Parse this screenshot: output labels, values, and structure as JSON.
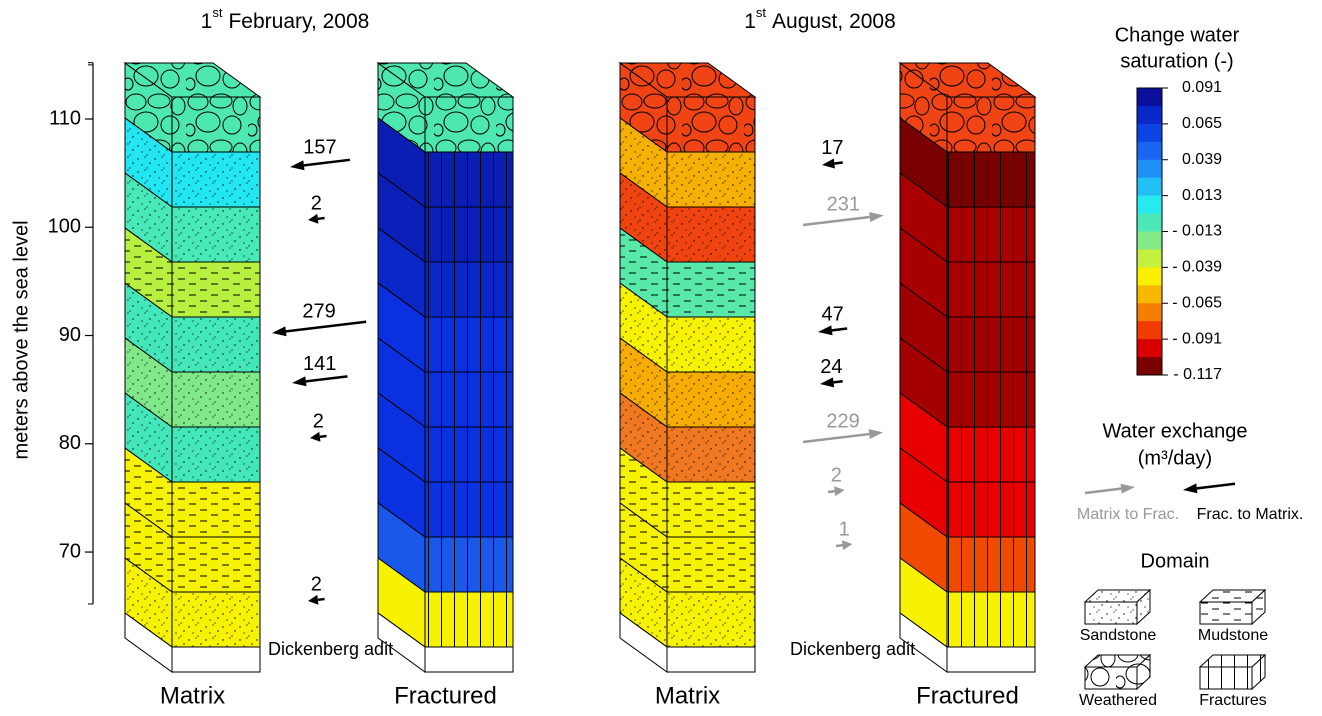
{
  "y_axis": {
    "label": "meters above the sea level",
    "ylim": [
      65.2,
      115.2
    ],
    "ticks": [
      110,
      100,
      90,
      80,
      70
    ]
  },
  "panels": [
    {
      "title": {
        "day": "1",
        "sup": "st",
        "rest": "February, 2008"
      },
      "adit_label": "Dickenberg adit",
      "columns": [
        {
          "label": "Matrix",
          "layers": [
            {
              "domain": 2,
              "color": "#4de8b0"
            },
            {
              "domain": 0,
              "color": "#22e6f2"
            },
            {
              "domain": 0,
              "color": "#48e8b8"
            },
            {
              "domain": 1,
              "color": "#b8f040"
            },
            {
              "domain": 0,
              "color": "#44e8b8"
            },
            {
              "domain": 0,
              "color": "#80e888"
            },
            {
              "domain": 0,
              "color": "#44e8b8"
            },
            {
              "domain": 1,
              "color": "#f6f200"
            },
            {
              "domain": 1,
              "color": "#f6f200"
            },
            {
              "domain": 0,
              "color": "#f6f200"
            },
            {
              "domain": null,
              "color": "#ffffff"
            }
          ]
        },
        {
          "label": "Fractured",
          "layers": [
            {
              "domain": 2,
              "color": "#4de8b0"
            },
            {
              "domain": 3,
              "color": "#0a1eb4"
            },
            {
              "domain": 3,
              "color": "#0a1eb8"
            },
            {
              "domain": 3,
              "color": "#0a28c8"
            },
            {
              "domain": 3,
              "color": "#0a30e0"
            },
            {
              "domain": 3,
              "color": "#0a30e0"
            },
            {
              "domain": 3,
              "color": "#0a30e0"
            },
            {
              "domain": 3,
              "color": "#0a32e0"
            },
            {
              "domain": 3,
              "color": "#1a58ea"
            },
            {
              "domain": 3,
              "color": "#f6f200"
            },
            {
              "domain": null,
              "color": "#ffffff"
            }
          ]
        }
      ],
      "arrows": [
        {
          "value": 157,
          "kind": 1
        },
        {
          "value": 2,
          "kind": 1
        },
        {
          "value": 279,
          "kind": 1
        },
        {
          "value": 141,
          "kind": 1
        },
        {
          "value": 2,
          "kind": 1
        },
        {
          "value": 2,
          "kind": 1
        }
      ]
    },
    {
      "title": {
        "day": "1",
        "sup": "st",
        "rest": "August, 2008"
      },
      "adit_label": "Dickenberg adit",
      "columns": [
        {
          "label": "Matrix",
          "layers": [
            {
              "domain": 2,
              "color": "#f04414"
            },
            {
              "domain": 0,
              "color": "#f6b000"
            },
            {
              "domain": 0,
              "color": "#f04410"
            },
            {
              "domain": 1,
              "color": "#58e8a8"
            },
            {
              "domain": 0,
              "color": "#f6f200"
            },
            {
              "domain": 0,
              "color": "#f6ac00"
            },
            {
              "domain": 0,
              "color": "#f07820"
            },
            {
              "domain": 1,
              "color": "#f6f200"
            },
            {
              "domain": 1,
              "color": "#f6f200"
            },
            {
              "domain": 0,
              "color": "#f6f200"
            },
            {
              "domain": null,
              "color": "#ffffff"
            }
          ]
        },
        {
          "label": "Fractured",
          "layers": [
            {
              "domain": 2,
              "color": "#f04414"
            },
            {
              "domain": 3,
              "color": "#780000"
            },
            {
              "domain": 3,
              "color": "#a80000"
            },
            {
              "domain": 3,
              "color": "#a80000"
            },
            {
              "domain": 3,
              "color": "#a00000"
            },
            {
              "domain": 3,
              "color": "#a40000"
            },
            {
              "domain": 3,
              "color": "#e80000"
            },
            {
              "domain": 3,
              "color": "#e80000"
            },
            {
              "domain": 3,
              "color": "#f04a00"
            },
            {
              "domain": 3,
              "color": "#f6f200"
            },
            {
              "domain": null,
              "color": "#ffffff"
            }
          ]
        }
      ],
      "arrows": [
        {
          "value": 17,
          "kind": 1
        },
        {
          "value": 231,
          "kind": 0
        },
        {
          "value": 47,
          "kind": 1
        },
        {
          "value": 24,
          "kind": 1
        },
        {
          "value": 229,
          "kind": 0
        },
        {
          "value": 2,
          "kind": 0
        },
        {
          "value": 1,
          "kind": 0
        }
      ]
    }
  ],
  "saturation_legend": {
    "title": [
      "Change water",
      "saturation (-)"
    ],
    "range": [
      -0.117,
      0.091
    ],
    "colors": [
      "#0a0f9c",
      "#0a28c8",
      "#0c44e4",
      "#1a66f0",
      "#1e90f5",
      "#22c0f5",
      "#26eaf0",
      "#4ce8b8",
      "#84ea88",
      "#c4f040",
      "#f8f000",
      "#f8b800",
      "#f67e00",
      "#f03c00",
      "#d80000",
      "#7a0000"
    ],
    "ticks": [
      0.091,
      0.065,
      0.039,
      0.013,
      {
        "value": -0.013,
        "label": "- 0.013"
      },
      {
        "value": -0.039,
        "label": "- 0.039"
      },
      {
        "value": -0.065,
        "label": "- 0.065"
      },
      {
        "value": -0.091,
        "label": "- 0.091"
      },
      {
        "value": -0.117,
        "label": "- 0.117"
      }
    ]
  },
  "exchange_legend": {
    "title": [
      "Water exchange",
      "(m³/day)"
    ],
    "items": [
      {
        "label": "Matrix to Frac.",
        "color": "#999999"
      },
      {
        "label": "Frac. to Matrix.",
        "color": "#000000"
      }
    ]
  },
  "domain_legend": {
    "title": "Domain",
    "items": [
      "Sandstone",
      "Mudstone",
      "Weathered",
      "Fractures"
    ]
  }
}
